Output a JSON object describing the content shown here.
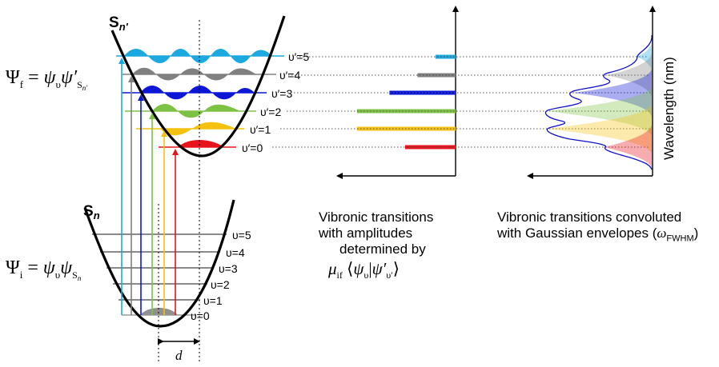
{
  "upper_state": {
    "label": "S",
    "label_sub": "n′",
    "equation": {
      "lhs": "Ψ",
      "lhs_sub": "f",
      "rhs_a": "ψ",
      "rhs_a_sub": "υ",
      "rhs_b": "ψ′",
      "rhs_b_sub": "S",
      "rhs_b_subsub": "n′"
    },
    "levels": [
      {
        "label": "υ′=5",
        "color": "#1BA9E0"
      },
      {
        "label": "υ′=4",
        "color": "#808080"
      },
      {
        "label": "υ′=3",
        "color": "#0B16D6"
      },
      {
        "label": "υ′=2",
        "color": "#7DC242"
      },
      {
        "label": "υ′=1",
        "color": "#F5C110"
      },
      {
        "label": "υ′=0",
        "color": "#E8141B"
      }
    ]
  },
  "lower_state": {
    "label": "S",
    "label_sub": "n",
    "equation": {
      "lhs": "Ψ",
      "lhs_sub": "i",
      "rhs_a": "ψ",
      "rhs_a_sub": "υ",
      "rhs_b": "ψ",
      "rhs_b_sub": "S",
      "rhs_b_subsub": "n"
    },
    "levels": [
      "υ=5",
      "υ=4",
      "υ=3",
      "υ=2",
      "υ=1",
      "υ=0"
    ]
  },
  "displacement_label": "d",
  "stick_spectrum": {
    "caption": [
      "Vibronic transitions",
      "with amplitudes",
      "determined by"
    ],
    "formula": {
      "mu": "μ",
      "mu_sub": "if",
      "open": "⟨",
      "psi": "ψ",
      "psi_sub": "υ",
      "bar": "|",
      "psi2": "ψ′",
      "psi2_sub": "υ′",
      "close": "⟩"
    },
    "amplitudes": [
      0.18,
      0.34,
      0.59,
      0.88,
      0.88,
      0.45
    ],
    "colors": [
      "#1BA9E0",
      "#808080",
      "#0B16D6",
      "#7DC242",
      "#F5C110",
      "#E8141B"
    ]
  },
  "convoluted_spectrum": {
    "caption_line1": "Vibronic transitions convoluted",
    "caption_line2": "with Gaussian envelopes (",
    "omega": "ω",
    "omega_sub": "FWHM",
    "caption_close": ")",
    "y_axis_label": "Wavelength (nm)",
    "envelope_color": "#1010D0"
  }
}
